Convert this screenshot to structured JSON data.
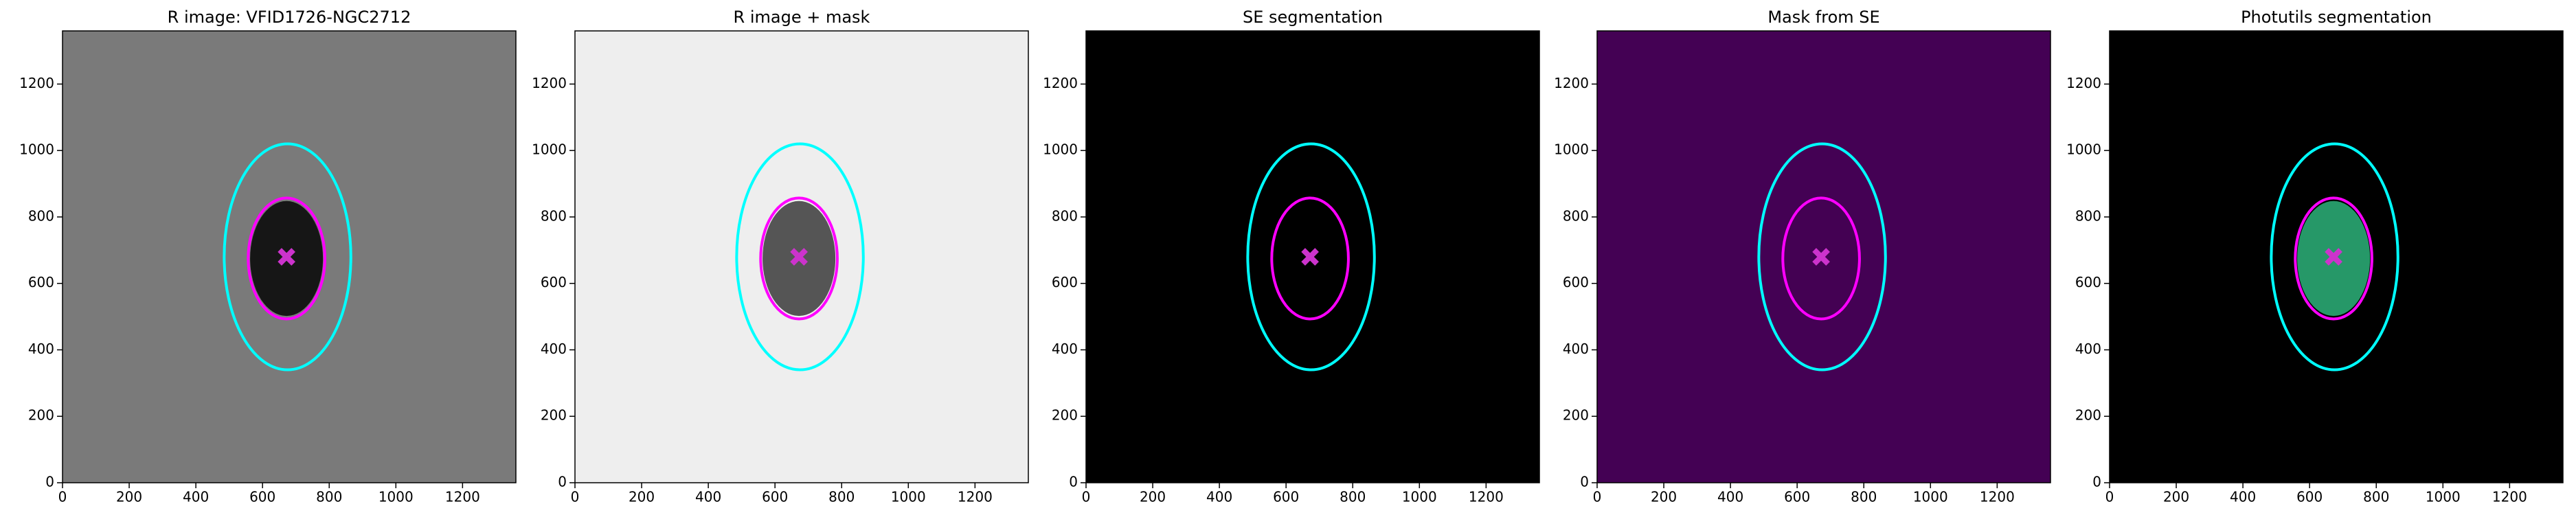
{
  "chart_data": [
    {
      "type": "image",
      "title": "R image: VFID1726-NGC2712",
      "background": "#7a7a7a",
      "feature_color": "#050505",
      "xlim": [
        0,
        1360
      ],
      "ylim": [
        0,
        1360
      ],
      "xticks": [
        0,
        200,
        400,
        600,
        800,
        1000,
        1200
      ],
      "yticks": [
        0,
        200,
        400,
        600,
        800,
        1000,
        1200
      ],
      "ellipses": [
        {
          "color": "#00ffff",
          "cx": 675,
          "cy": 680,
          "rx": 190,
          "ry": 340
        },
        {
          "color": "#ff00ff",
          "cx": 672,
          "cy": 675,
          "rx": 115,
          "ry": 182
        }
      ],
      "marker": {
        "x": 672,
        "y": 680,
        "color": "#cc33cc"
      }
    },
    {
      "type": "image",
      "title": "R image + mask",
      "background": "#eeeeee",
      "feature_color": "#3a3a3a",
      "xlim": [
        0,
        1360
      ],
      "ylim": [
        0,
        1360
      ],
      "xticks": [
        0,
        200,
        400,
        600,
        800,
        1000,
        1200
      ],
      "yticks": [
        0,
        200,
        400,
        600,
        800,
        1000,
        1200
      ],
      "ellipses": [
        {
          "color": "#00ffff",
          "cx": 675,
          "cy": 680,
          "rx": 190,
          "ry": 340
        },
        {
          "color": "#ff00ff",
          "cx": 672,
          "cy": 675,
          "rx": 115,
          "ry": 182
        }
      ],
      "marker": {
        "x": 672,
        "y": 680,
        "color": "#cc33cc"
      }
    },
    {
      "type": "image",
      "title": "SE segmentation",
      "background": "#000000",
      "feature_color": "#000000",
      "xlim": [
        0,
        1360
      ],
      "ylim": [
        0,
        1360
      ],
      "xticks": [
        0,
        200,
        400,
        600,
        800,
        1000,
        1200
      ],
      "yticks": [
        0,
        200,
        400,
        600,
        800,
        1000,
        1200
      ],
      "ellipses": [
        {
          "color": "#00ffff",
          "cx": 675,
          "cy": 680,
          "rx": 190,
          "ry": 340
        },
        {
          "color": "#ff00ff",
          "cx": 672,
          "cy": 675,
          "rx": 115,
          "ry": 182
        }
      ],
      "marker": {
        "x": 672,
        "y": 680,
        "color": "#cc33cc"
      }
    },
    {
      "type": "image",
      "title": "Mask from SE",
      "background": "#440154",
      "feature_color": "#440154",
      "xlim": [
        0,
        1360
      ],
      "ylim": [
        0,
        1360
      ],
      "xticks": [
        0,
        200,
        400,
        600,
        800,
        1000,
        1200
      ],
      "yticks": [
        0,
        200,
        400,
        600,
        800,
        1000,
        1200
      ],
      "ellipses": [
        {
          "color": "#00ffff",
          "cx": 675,
          "cy": 680,
          "rx": 190,
          "ry": 340
        },
        {
          "color": "#ff00ff",
          "cx": 672,
          "cy": 675,
          "rx": 115,
          "ry": 182
        }
      ],
      "marker": {
        "x": 672,
        "y": 680,
        "color": "#cc33cc"
      }
    },
    {
      "type": "image",
      "title": "Photutils segmentation",
      "background": "#000000",
      "feature_color": "#2db37a",
      "xlim": [
        0,
        1360
      ],
      "ylim": [
        0,
        1360
      ],
      "xticks": [
        0,
        200,
        400,
        600,
        800,
        1000,
        1200
      ],
      "yticks": [
        0,
        200,
        400,
        600,
        800,
        1000,
        1200
      ],
      "ellipses": [
        {
          "color": "#00ffff",
          "cx": 675,
          "cy": 680,
          "rx": 190,
          "ry": 340
        },
        {
          "color": "#ff00ff",
          "cx": 672,
          "cy": 675,
          "rx": 115,
          "ry": 182
        }
      ],
      "marker": {
        "x": 672,
        "y": 680,
        "color": "#cc33cc"
      }
    }
  ]
}
